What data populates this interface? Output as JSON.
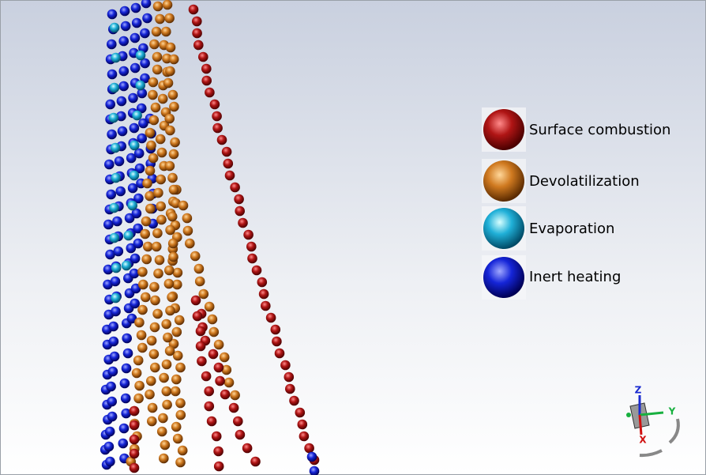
{
  "legend": {
    "items": [
      {
        "label": "Surface combustion"
      },
      {
        "label": "Devolatilization"
      },
      {
        "label": "Evaporation"
      },
      {
        "label": "Inert heating"
      }
    ]
  },
  "triad": {
    "z": "Z",
    "y": "Y",
    "x": "X"
  }
}
